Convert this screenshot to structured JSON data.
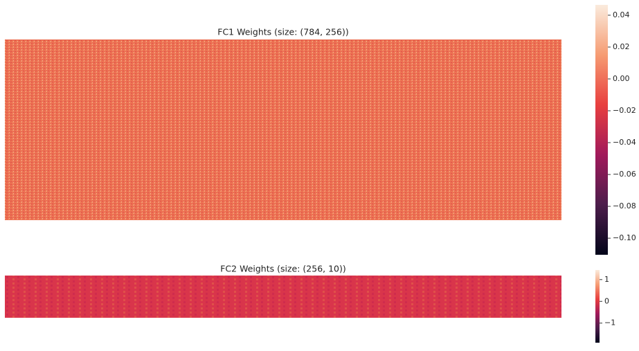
{
  "chart_data": [
    {
      "type": "heatmap",
      "title": "FC1 Weights (size: (784, 256))",
      "colormap": "rocket",
      "clim": [
        -0.1104,
        0.0465
      ],
      "cticks": [
        0.04,
        {
          "value": 0.02,
          "label": "0.02"
        },
        {
          "value": 0,
          "label": "0.00"
        },
        {
          "value": -0.02,
          "label": "−0.02"
        },
        {
          "value": -0.04,
          "label": "−0.04"
        },
        {
          "value": -0.06,
          "label": "−0.06"
        },
        {
          "value": -0.08,
          "label": "−0.08"
        },
        {
          "value": -0.1,
          "label": "−0.10"
        }
      ]
    },
    {
      "type": "heatmap",
      "title": "FC2 Weights (size: (256, 10))",
      "colormap": "rocket",
      "clim": [
        -1.9,
        1.44
      ],
      "cticks": [
        1,
        0,
        {
          "value": -1,
          "label": "−1"
        }
      ]
    }
  ]
}
